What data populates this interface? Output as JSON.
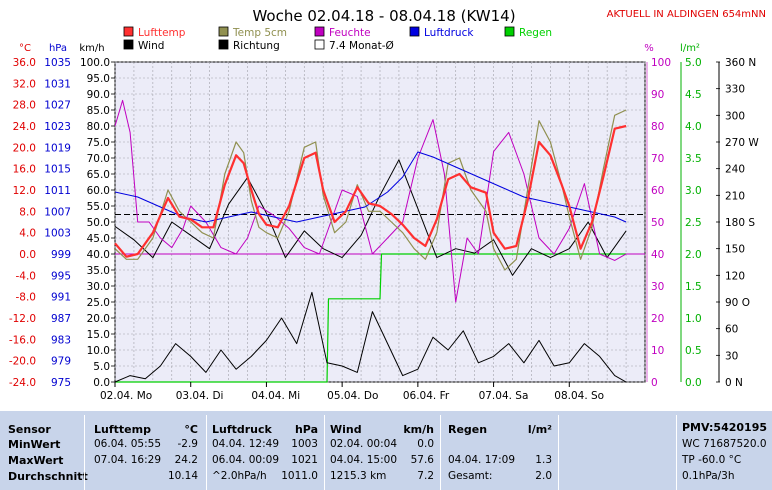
{
  "header": {
    "title": "Woche 02.04.18 - 08.04.18 (KW14)",
    "status": "AKTUELL IN ALDINGEN 654mNN"
  },
  "legend": [
    {
      "name": "Lufttemp",
      "color": "#ff3030"
    },
    {
      "name": "Temp 5cm",
      "color": "#909050"
    },
    {
      "name": "Feuchte",
      "color": "#c000c0"
    },
    {
      "name": "Luftdruck",
      "color": "#0000e0"
    },
    {
      "name": "Regen",
      "color": "#00d000"
    },
    {
      "name": "Wind",
      "color": "#000000"
    },
    {
      "name": "Richtung",
      "color": "#000000"
    },
    {
      "name": "7.4 Monat-Ø",
      "color": "#ffffff"
    }
  ],
  "units": {
    "celsius": "°C",
    "hpa": "hPa",
    "kmh": "km/h",
    "percent": "%",
    "rain": "l/m²"
  },
  "chart_data": {
    "type": "line",
    "title": "Woche 02.04.18 - 08.04.18 (KW14)",
    "x_ticks": [
      "02.04. Mo",
      "03.04. Di",
      "04.04. Mi",
      "05.04. Do",
      "06.04. Fr",
      "07.04. Sa",
      "08.04. So"
    ],
    "axes": {
      "temperature": {
        "unit": "°C",
        "range": [
          -24,
          36
        ],
        "ticks": [
          "36.0",
          "32.0",
          "28.0",
          "24.0",
          "20.0",
          "16.0",
          "12.0",
          "8.0",
          "4.0",
          "0.0",
          "-4.0",
          "-8.0",
          "-12.0",
          "-16.0",
          "-20.0",
          "-24.0"
        ]
      },
      "pressure": {
        "unit": "hPa",
        "range": [
          975,
          1039
        ],
        "ticks": [
          "1035",
          "1031",
          "1027",
          "1023",
          "1019",
          "1015",
          "1011",
          "1007",
          "1003",
          "999",
          "995",
          "991",
          "987",
          "983",
          "979",
          "975"
        ]
      },
      "wind": {
        "unit": "km/h",
        "range": [
          0,
          100
        ],
        "ticks": [
          "100.0",
          "95.0",
          "90.0",
          "85.0",
          "80.0",
          "75.0",
          "70.0",
          "65.0",
          "60.0",
          "55.0",
          "50.0",
          "45.0",
          "40.0",
          "35.0",
          "30.0",
          "25.0",
          "20.0",
          "15.0",
          "10.0",
          "5.0",
          "0.0"
        ]
      },
      "humidity": {
        "unit": "%",
        "range": [
          0,
          100
        ],
        "ticks": [
          "100",
          "90",
          "80",
          "70",
          "60",
          "50",
          "40",
          "30",
          "20",
          "10",
          "0"
        ]
      },
      "rain": {
        "unit": "l/m²",
        "range": [
          0,
          5
        ],
        "ticks": [
          "5.0",
          "4.5",
          "4.0",
          "3.5",
          "3.0",
          "2.5",
          "2.0",
          "1.5",
          "1.0",
          "0.5",
          "0.0"
        ]
      },
      "direction": {
        "range": [
          0,
          360
        ],
        "ticks": [
          "360 N",
          "330",
          "300",
          "270 W",
          "240",
          "210",
          "180 S",
          "150",
          "120",
          "90 O",
          "60",
          "30",
          "0 N"
        ]
      }
    },
    "series": [
      {
        "name": "Lufttemp",
        "axis": "temperature",
        "x": [
          0,
          0.15,
          0.3,
          0.5,
          0.7,
          0.85,
          1.0,
          1.15,
          1.3,
          1.45,
          1.6,
          1.7,
          1.8,
          1.9,
          2.0,
          2.15,
          2.3,
          2.5,
          2.65,
          2.75,
          2.9,
          3.05,
          3.2,
          3.35,
          3.5,
          3.65,
          3.8,
          3.95,
          4.1,
          4.25,
          4.4,
          4.55,
          4.7,
          4.9,
          5.0,
          5.15,
          5.3,
          5.45,
          5.6,
          5.75,
          5.9,
          6.0,
          6.15,
          6.3,
          6.45,
          6.6,
          6.75
        ],
        "y": [
          2,
          -0.5,
          0,
          4,
          10.5,
          7,
          6.5,
          5,
          5,
          13,
          18.5,
          17,
          12,
          7.5,
          5.5,
          5,
          9,
          18,
          19,
          12,
          6,
          8,
          12.5,
          9.5,
          9,
          7.5,
          5.5,
          3,
          1.5,
          6.5,
          14,
          15,
          12.5,
          11.5,
          4,
          1,
          1.5,
          10,
          21,
          18.5,
          13,
          9,
          1,
          6,
          14.5,
          23.5,
          24
        ]
      },
      {
        "name": "Temp 5cm",
        "axis": "temperature",
        "x": [
          0,
          0.15,
          0.3,
          0.5,
          0.7,
          0.85,
          1.0,
          1.15,
          1.3,
          1.45,
          1.6,
          1.7,
          1.8,
          1.9,
          2.0,
          2.15,
          2.3,
          2.5,
          2.65,
          2.75,
          2.9,
          3.05,
          3.2,
          3.35,
          3.5,
          3.65,
          3.8,
          3.95,
          4.1,
          4.25,
          4.4,
          4.55,
          4.7,
          4.9,
          5.0,
          5.15,
          5.3,
          5.45,
          5.6,
          5.75,
          5.9,
          6.0,
          6.15,
          6.3,
          6.45,
          6.6,
          6.75
        ],
        "y": [
          1,
          -1,
          -1,
          3,
          12,
          8,
          6,
          4,
          3,
          15,
          21,
          19,
          10,
          5,
          4,
          3,
          8,
          20,
          21,
          11,
          4,
          6,
          13,
          8,
          8,
          6,
          4,
          1,
          -1,
          4,
          17,
          18,
          12,
          8,
          1,
          -3,
          -1,
          12,
          25,
          21,
          13,
          7,
          -1,
          5,
          16,
          26,
          27
        ]
      },
      {
        "name": "Feuchte",
        "axis": "humidity",
        "x": [
          0,
          0.1,
          0.2,
          0.3,
          0.45,
          0.6,
          0.75,
          0.9,
          1.0,
          1.2,
          1.4,
          1.6,
          1.75,
          1.9,
          2.1,
          2.3,
          2.5,
          2.7,
          2.85,
          3.0,
          3.2,
          3.4,
          3.6,
          3.8,
          4.0,
          4.2,
          4.35,
          4.5,
          4.65,
          4.8,
          5.0,
          5.2,
          5.4,
          5.6,
          5.8,
          6.0,
          6.2,
          6.4,
          6.6,
          6.75
        ],
        "y": [
          80,
          88,
          78,
          50,
          50,
          45,
          42,
          48,
          55,
          50,
          42,
          40,
          45,
          55,
          52,
          48,
          42,
          40,
          50,
          60,
          58,
          40,
          45,
          50,
          70,
          82,
          65,
          25,
          45,
          40,
          72,
          78,
          65,
          45,
          40,
          48,
          62,
          40,
          38,
          40
        ]
      },
      {
        "name": "Luftdruck",
        "axis": "pressure",
        "x": [
          0,
          0.3,
          0.6,
          0.9,
          1.2,
          1.5,
          1.8,
          2.1,
          2.4,
          2.7,
          3.0,
          3.3,
          3.6,
          3.8,
          4.0,
          4.2,
          4.5,
          4.8,
          5.1,
          5.4,
          5.7,
          6.0,
          6.3,
          6.6,
          6.75
        ],
        "y": [
          1013,
          1012,
          1010,
          1008,
          1007,
          1008,
          1009,
          1008,
          1007,
          1008,
          1009,
          1010,
          1013,
          1016,
          1021,
          1020,
          1018,
          1016,
          1014,
          1012,
          1011,
          1010,
          1009,
          1008,
          1007
        ]
      },
      {
        "name": "Regen",
        "axis": "rain",
        "x": [
          0,
          1.0,
          2.0,
          2.8,
          2.82,
          3.0,
          3.5,
          3.52,
          4.0,
          5.0,
          6.0,
          6.75
        ],
        "y": [
          0,
          0,
          0,
          0,
          1.3,
          1.3,
          1.3,
          2.0,
          2.0,
          2.0,
          2.0,
          2.0
        ]
      },
      {
        "name": "Wind",
        "axis": "wind",
        "x": [
          0,
          0.2,
          0.4,
          0.6,
          0.8,
          1.0,
          1.2,
          1.4,
          1.6,
          1.8,
          2.0,
          2.2,
          2.4,
          2.6,
          2.8,
          3.0,
          3.2,
          3.4,
          3.6,
          3.8,
          4.0,
          4.2,
          4.4,
          4.6,
          4.8,
          5.0,
          5.2,
          5.4,
          5.6,
          5.8,
          6.0,
          6.2,
          6.4,
          6.6,
          6.75
        ],
        "y": [
          0,
          2,
          1,
          5,
          12,
          8,
          3,
          10,
          4,
          8,
          13,
          20,
          12,
          28,
          6,
          5,
          3,
          22,
          12,
          2,
          4,
          14,
          10,
          16,
          6,
          8,
          12,
          6,
          13,
          5,
          6,
          12,
          8,
          2,
          0
        ]
      },
      {
        "name": "Richtung",
        "axis": "direction",
        "x": [
          0,
          0.25,
          0.5,
          0.75,
          1.0,
          1.25,
          1.5,
          1.75,
          2.0,
          2.25,
          2.5,
          2.75,
          3.0,
          3.25,
          3.5,
          3.75,
          4.0,
          4.25,
          4.5,
          4.75,
          5.0,
          5.25,
          5.5,
          5.75,
          6.0,
          6.25,
          6.5,
          6.75
        ],
        "y": [
          175,
          160,
          140,
          180,
          165,
          150,
          200,
          230,
          190,
          140,
          170,
          150,
          140,
          165,
          210,
          250,
          195,
          140,
          150,
          145,
          160,
          120,
          150,
          140,
          150,
          180,
          140,
          170
        ]
      }
    ],
    "monthly_avg": {
      "value": 7.4,
      "axis": "temperature"
    }
  },
  "stats": {
    "sensor": {
      "header": "Sensor",
      "rows": [
        "MinWert",
        "MaxWert",
        "Durchschnitt"
      ]
    },
    "lufttemp": {
      "header": "Lufttemp",
      "unit": "°C",
      "rows": [
        [
          "06.04.  05:55",
          "-2.9"
        ],
        [
          "07.04.  16:29",
          "24.2"
        ],
        [
          "",
          "10.14"
        ]
      ]
    },
    "luftdruck": {
      "header": "Luftdruck",
      "unit": "hPa",
      "rows": [
        [
          "04.04.  12:49",
          "1003"
        ],
        [
          "06.04.  00:09",
          "1021"
        ],
        [
          "^2.0hPa/h",
          "1011.0"
        ]
      ]
    },
    "wind": {
      "header": "Wind",
      "unit": "km/h",
      "rows": [
        [
          "02.04.  00:04",
          "0.0"
        ],
        [
          "04.04.  15:00",
          "57.6"
        ],
        [
          "1215.3 km",
          "7.2"
        ]
      ]
    },
    "regen": {
      "header": "Regen",
      "unit": "l/m²",
      "rows": [
        [
          "",
          ""
        ],
        [
          "04.04.  17:09",
          "1.3"
        ],
        [
          "Gesamt:",
          "2.0"
        ]
      ]
    },
    "pmv": {
      "header": "PMV:5420195",
      "rows": [
        "WC 71687520.0",
        "TP -60.0 °C",
        "0.1hPa/3h"
      ]
    }
  }
}
